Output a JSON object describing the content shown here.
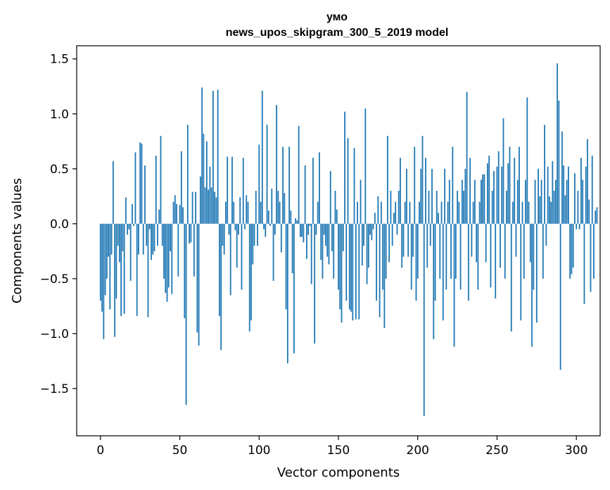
{
  "chart_data": {
    "type": "bar",
    "title_line1": "умо",
    "title_line2": "news_upos_skipgram_300_5_2019 model",
    "xlabel": "Vector components",
    "ylabel": "Components values",
    "xlim": [
      -15,
      315
    ],
    "ylim": [
      -1.93,
      1.62
    ],
    "xticks": [
      0,
      50,
      100,
      150,
      200,
      250,
      300
    ],
    "xtick_labels": [
      "0",
      "50",
      "100",
      "150",
      "200",
      "250",
      "300"
    ],
    "yticks": [
      -1.5,
      -1.0,
      -0.5,
      0.0,
      0.5,
      1.0,
      1.5
    ],
    "ytick_labels": [
      "−1.5",
      "−1.0",
      "−0.5",
      "0.0",
      "0.5",
      "1.0",
      "1.5"
    ],
    "bar_color": "#1f77b4",
    "values": [
      -0.7,
      -0.8,
      -1.05,
      -0.65,
      -0.5,
      -0.3,
      -0.78,
      -0.28,
      0.57,
      -1.03,
      -0.68,
      -0.2,
      -0.35,
      -0.84,
      -0.25,
      -0.82,
      0.24,
      -0.1,
      -0.05,
      -0.52,
      0.18,
      -0.02,
      0.65,
      -0.84,
      -0.28,
      0.74,
      0.73,
      -0.28,
      0.53,
      -0.2,
      -0.85,
      -0.05,
      -0.33,
      -0.28,
      -0.25,
      0.62,
      -0.2,
      0.13,
      0.8,
      -0.2,
      -0.5,
      -0.63,
      -0.71,
      -0.58,
      -0.25,
      -0.64,
      0.2,
      0.26,
      0.18,
      -0.48,
      0.17,
      0.66,
      0.15,
      -0.86,
      -1.65,
      0.9,
      -0.18,
      -0.17,
      0.29,
      -0.48,
      0.29,
      -0.99,
      -1.11,
      0.43,
      1.24,
      0.82,
      0.33,
      0.75,
      0.31,
      0.52,
      0.33,
      1.21,
      0.29,
      0.24,
      1.22,
      -0.84,
      -1.15,
      -0.2,
      -0.28,
      0.2,
      0.61,
      -0.1,
      -0.65,
      0.61,
      0.2,
      -0.06,
      -0.4,
      -0.1,
      0.24,
      -0.6,
      0.6,
      -0.05,
      0.26,
      0.2,
      -0.98,
      -0.88,
      -0.37,
      -0.2,
      0.3,
      -0.2,
      0.72,
      0.2,
      1.21,
      -0.05,
      -0.12,
      0.9,
      0.12,
      -0.02,
      0.32,
      -0.52,
      -0.1,
      1.08,
      0.3,
      0.2,
      -0.26,
      0.7,
      0.28,
      -0.78,
      -1.27,
      0.7,
      0.12,
      -0.45,
      -1.18,
      0.05,
      0.03,
      0.89,
      -0.12,
      -0.12,
      -0.17,
      0.53,
      -0.32,
      -0.1,
      -0.02,
      -0.55,
      0.6,
      -1.09,
      -0.1,
      0.2,
      0.65,
      -0.33,
      -0.5,
      -0.1,
      -0.2,
      -0.3,
      -0.37,
      0.48,
      -0.25,
      -0.5,
      0.3,
      0.13,
      -0.6,
      -0.78,
      -0.9,
      -0.25,
      1.02,
      -0.7,
      0.78,
      -0.78,
      -0.8,
      -0.88,
      0.69,
      -0.87,
      0.2,
      -0.87,
      0.4,
      -0.38,
      -0.2,
      1.05,
      -0.55,
      -0.4,
      -0.1,
      -0.15,
      -0.05,
      0.1,
      -0.7,
      0.25,
      -0.85,
      0.2,
      -0.6,
      -0.95,
      -0.5,
      0.8,
      -0.35,
      0.3,
      -0.2,
      0.1,
      0.2,
      -0.1,
      0.3,
      0.6,
      -0.4,
      -0.3,
      0.2,
      0.5,
      -0.3,
      0.2,
      -0.6,
      -0.3,
      0.7,
      -0.7,
      -0.5,
      0.2,
      0.5,
      0.8,
      -1.75,
      0.6,
      -0.4,
      0.3,
      -0.2,
      0.5,
      -1.05,
      -0.7,
      0.3,
      0.1,
      -0.5,
      0.2,
      -0.88,
      0.5,
      -0.6,
      0.2,
      0.4,
      -0.5,
      0.7,
      -1.12,
      -0.5,
      0.3,
      0.2,
      -0.6,
      0.4,
      0.3,
      0.5,
      1.2,
      -0.7,
      0.6,
      -0.3,
      0.2,
      0.4,
      -0.35,
      -0.6,
      0.2,
      0.4,
      0.45,
      0.45,
      -0.35,
      0.55,
      0.62,
      -0.58,
      0.3,
      0.48,
      -0.68,
      0.52,
      0.66,
      -0.4,
      0.52,
      0.96,
      -0.5,
      0.3,
      0.55,
      0.7,
      -0.98,
      0.2,
      0.6,
      -0.3,
      0.4,
      0.7,
      -0.88,
      0.2,
      -0.5,
      0.4,
      1.15,
      0.2,
      -0.35,
      -1.12,
      -0.6,
      0.4,
      -0.9,
      0.5,
      0.25,
      0.4,
      -0.5,
      0.9,
      -0.2,
      0.52,
      0.25,
      0.2,
      0.57,
      0.3,
      0.4,
      1.46,
      1.12,
      -1.33,
      0.84,
      0.53,
      0.26,
      0.4,
      0.52,
      -0.5,
      -0.46,
      -0.4,
      0.46,
      -0.05,
      0.3,
      -0.05,
      0.6,
      0.4,
      -0.73,
      0.52,
      0.77,
      0.22,
      -0.62,
      0.62,
      -0.5,
      0.12,
      0.15
    ]
  }
}
